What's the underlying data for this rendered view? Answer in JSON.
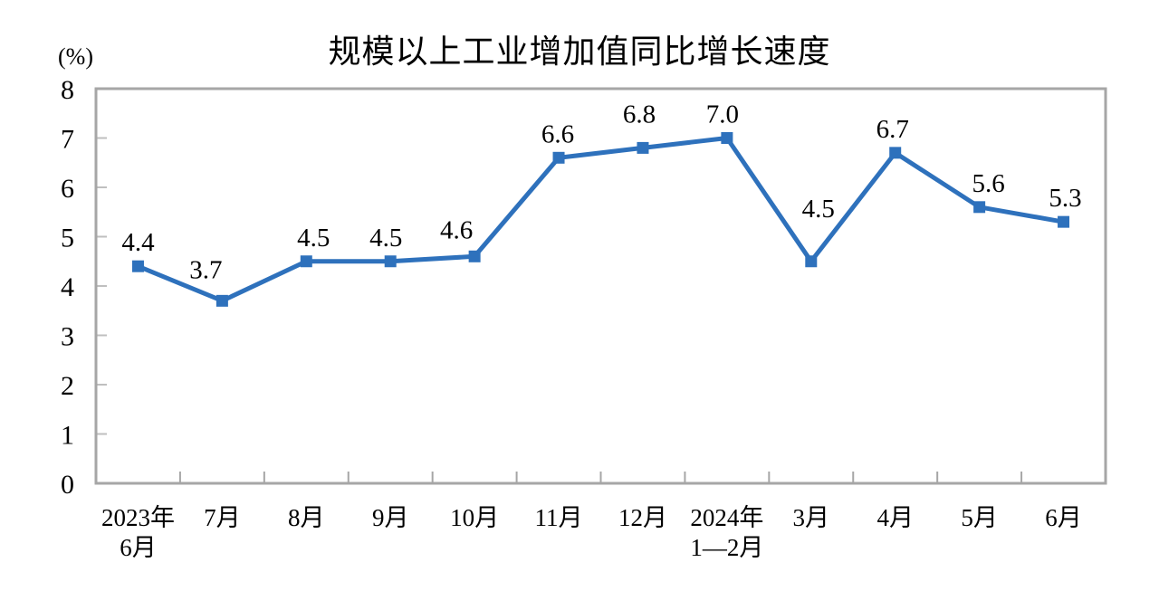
{
  "chart_data": {
    "type": "line",
    "title": "规模以上工业增加值同比增长速度",
    "ylabel": "(%)",
    "xlabel": "",
    "ylim": [
      0,
      8
    ],
    "ytick_step": 1,
    "grid": false,
    "legend_position": "none",
    "categories": [
      "2023年\n6月",
      "7月",
      "8月",
      "9月",
      "10月",
      "11月",
      "12月",
      "2024年\n1—2月",
      "3月",
      "4月",
      "5月",
      "6月"
    ],
    "series": [
      {
        "name": "规模以上工业增加值同比增长速度",
        "values": [
          4.4,
          3.7,
          4.5,
          4.5,
          4.6,
          6.6,
          6.8,
          7.0,
          4.5,
          6.7,
          5.6,
          5.3
        ],
        "color": "#2E71BC",
        "marker": "square",
        "data_labels": [
          "4.4",
          "3.7",
          "4.5",
          "4.5",
          "4.6",
          "6.6",
          "6.8",
          "7.0",
          "4.5",
          "6.7",
          "5.6",
          "5.3"
        ]
      }
    ],
    "plot_border_color": "#A6A6A6",
    "tick_color": "#A6A6A6",
    "minor_tick_color": "#BFBFBF",
    "text_color": "#000000",
    "background_color": "#FFFFFF"
  }
}
